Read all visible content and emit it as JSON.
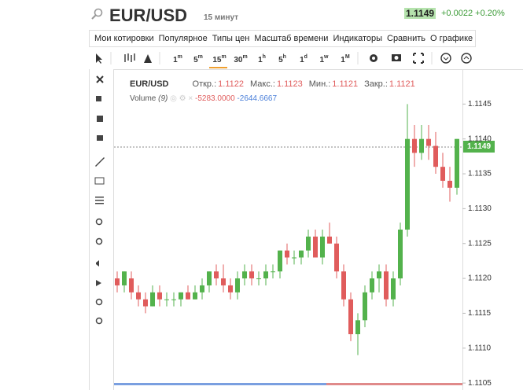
{
  "header": {
    "symbol": "EUR/USD",
    "interval": "15 минут",
    "price": "1.1149",
    "change": "+0.0022",
    "change_pct": "+0.20%"
  },
  "menu": [
    "Мои котировки",
    "Популярное",
    "Типы цен",
    "Масштаб времени",
    "Индикаторы",
    "Сравнить",
    "О графике"
  ],
  "timeframes": [
    {
      "n": "1",
      "u": "m"
    },
    {
      "n": "5",
      "u": "m"
    },
    {
      "n": "15",
      "u": "m"
    },
    {
      "n": "30",
      "u": "m"
    },
    {
      "n": "1",
      "u": "h"
    },
    {
      "n": "5",
      "u": "h"
    },
    {
      "n": "1",
      "u": "d"
    },
    {
      "n": "1",
      "u": "w"
    },
    {
      "n": "1",
      "u": "M"
    }
  ],
  "legend": {
    "name": "EUR/USD",
    "fields": [
      {
        "label": "Откр.:",
        "value": "1.1122"
      },
      {
        "label": "Макс.:",
        "value": "1.1123"
      },
      {
        "label": "Мин.:",
        "value": "1.1121"
      },
      {
        "label": "Закр.:",
        "value": "1.1121"
      }
    ],
    "volume": {
      "label": "Volume",
      "param": "(9)",
      "v1": "-5283.0000",
      "v2": "-2644.6667"
    }
  },
  "chart_data": {
    "type": "candlestick",
    "up_color": "#53b24c",
    "down_color": "#e05c5c",
    "ylim": [
      1.1104,
      1.115
    ],
    "yticks": [
      1.1105,
      {
        "value": 1.111,
        "label": "1.1110"
      },
      1.1115,
      {
        "value": 1.112,
        "label": "1.1120"
      },
      1.1125,
      {
        "value": 1.113,
        "label": "1.1130"
      },
      1.1135,
      {
        "value": 1.114,
        "label": "1.1140"
      },
      1.1145
    ],
    "open": [
      1.112,
      1.1119,
      1.112,
      1.1118,
      1.1117,
      1.1116,
      1.1118,
      1.1117,
      1.1117,
      1.1117,
      1.1118,
      1.1117,
      1.1118,
      1.1119,
      1.1121,
      1.112,
      1.1119,
      1.1118,
      1.112,
      1.1121,
      1.112,
      1.112,
      1.1121,
      1.1121,
      1.1124,
      1.1123,
      1.1123,
      1.1124,
      1.1126,
      1.1123,
      1.1126,
      1.1125,
      1.1121,
      1.1117,
      1.1112,
      1.1114,
      1.1118,
      1.112,
      1.1121,
      1.1117,
      1.112,
      1.1127,
      1.114,
      1.1138,
      1.114,
      1.1139,
      1.1136,
      1.1134,
      1.1133
    ],
    "high": [
      1.1121,
      1.1121,
      1.1121,
      1.1119,
      1.1118,
      1.1119,
      1.1119,
      1.1118,
      1.1118,
      1.1118,
      1.1119,
      1.1119,
      1.112,
      1.1121,
      1.1122,
      1.1122,
      1.112,
      1.1121,
      1.1122,
      1.1122,
      1.1121,
      1.1122,
      1.1122,
      1.1124,
      1.1125,
      1.1124,
      1.1124,
      1.1127,
      1.1127,
      1.1127,
      1.1128,
      1.1126,
      1.1122,
      1.1118,
      1.1115,
      1.1119,
      1.1121,
      1.1122,
      1.1122,
      1.1121,
      1.1128,
      1.1145,
      1.1142,
      1.1142,
      1.1142,
      1.1141,
      1.1138,
      1.1136,
      1.114
    ],
    "low": [
      1.1118,
      1.1118,
      1.1117,
      1.1116,
      1.1115,
      1.1116,
      1.1116,
      1.1116,
      1.1116,
      1.1116,
      1.1117,
      1.1117,
      1.1117,
      1.1118,
      1.1119,
      1.1118,
      1.1117,
      1.1117,
      1.1119,
      1.1119,
      1.1119,
      1.1119,
      1.112,
      1.112,
      1.1122,
      1.1122,
      1.1122,
      1.1123,
      1.1123,
      1.1122,
      1.1125,
      1.112,
      1.1116,
      1.1111,
      1.1109,
      1.1113,
      1.1117,
      1.1118,
      1.1116,
      1.1116,
      1.1119,
      1.1126,
      1.1136,
      1.1137,
      1.1137,
      1.1135,
      1.1133,
      1.1131,
      1.1132
    ],
    "close": [
      1.1119,
      1.1121,
      1.1118,
      1.1117,
      1.1116,
      1.1118,
      1.1117,
      1.1117,
      1.1117,
      1.1118,
      1.1117,
      1.1118,
      1.1119,
      1.1121,
      1.112,
      1.1119,
      1.1118,
      1.112,
      1.1121,
      1.112,
      1.112,
      1.1121,
      1.1121,
      1.1124,
      1.1123,
      1.1123,
      1.1124,
      1.1126,
      1.1123,
      1.1126,
      1.1125,
      1.1121,
      1.1117,
      1.1112,
      1.1114,
      1.1118,
      1.112,
      1.1121,
      1.1117,
      1.112,
      1.1127,
      1.114,
      1.1138,
      1.114,
      1.1139,
      1.1136,
      1.1134,
      1.1133,
      1.114
    ]
  }
}
